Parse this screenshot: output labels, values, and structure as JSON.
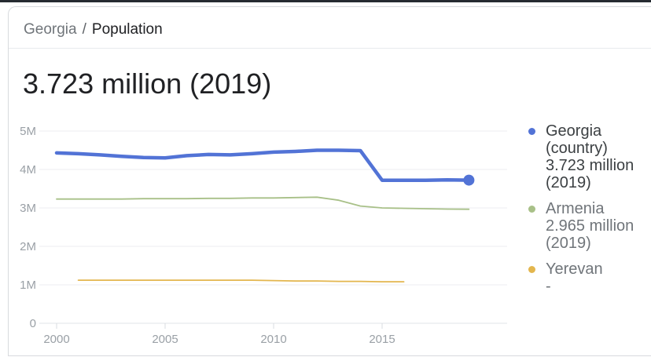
{
  "breadcrumb": {
    "parent": "Georgia",
    "separator": "/",
    "current": "Population"
  },
  "title": "3.723 million (2019)",
  "legend": {
    "items": [
      {
        "label": "Georgia (country)",
        "value": "3.723 million (2019)",
        "color": "#5273d6"
      },
      {
        "label": "Armenia",
        "value": "2.965 million (2019)",
        "color": "#a8c088"
      },
      {
        "label": "Yerevan",
        "value": "-",
        "color": "#e3b64e"
      }
    ]
  },
  "chart_data": {
    "type": "line",
    "title": "3.723 million (2019)",
    "xlabel": "",
    "ylabel": "",
    "x_ticks": [
      2000,
      2005,
      2010,
      2015
    ],
    "y_tick_labels": [
      "0",
      "1M",
      "2M",
      "3M",
      "4M",
      "5M"
    ],
    "ylim_millions": [
      0,
      5
    ],
    "grid": "horizontal",
    "legend_position": "right",
    "series": [
      {
        "name": "Georgia (country)",
        "color": "#5273d6",
        "stroke_width": 4.5,
        "start_year": 2000,
        "end_dot": true,
        "values_millions": [
          4.43,
          4.41,
          4.38,
          4.34,
          4.31,
          4.3,
          4.36,
          4.39,
          4.38,
          4.41,
          4.45,
          4.47,
          4.5,
          4.5,
          4.49,
          3.72,
          3.72,
          3.72,
          3.73,
          3.723
        ]
      },
      {
        "name": "Armenia",
        "color": "#a8c088",
        "stroke_width": 1.8,
        "start_year": 2000,
        "end_dot": false,
        "values_millions": [
          3.23,
          3.23,
          3.23,
          3.23,
          3.24,
          3.24,
          3.24,
          3.25,
          3.25,
          3.26,
          3.26,
          3.27,
          3.28,
          3.2,
          3.05,
          3.0,
          2.99,
          2.98,
          2.97,
          2.965
        ]
      },
      {
        "name": "Yerevan",
        "color": "#e3b64e",
        "stroke_width": 1.8,
        "start_year": 2001,
        "end_dot": false,
        "values_millions": [
          1.12,
          1.12,
          1.12,
          1.12,
          1.12,
          1.12,
          1.12,
          1.12,
          1.12,
          1.11,
          1.1,
          1.1,
          1.09,
          1.09,
          1.08,
          1.08
        ]
      }
    ]
  }
}
